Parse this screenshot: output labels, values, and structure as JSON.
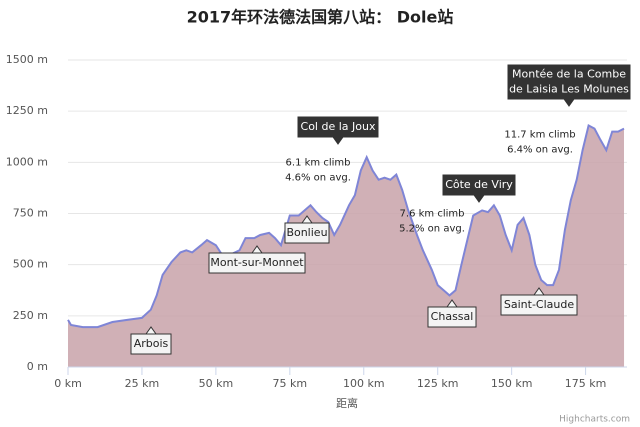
{
  "chart_data": {
    "type": "area",
    "title": "2017年环法德法国第八站： Dole站",
    "x_label": "距离",
    "credits": "Highcharts.com",
    "color": "#7f85d6",
    "fill": "#c8a2a9",
    "grid": true,
    "x": [
      0,
      1,
      5,
      10,
      15,
      20,
      25,
      28,
      30,
      32,
      35,
      38,
      40,
      42,
      45,
      47,
      50,
      52,
      55,
      58,
      60,
      63,
      65,
      68,
      70,
      72,
      75,
      78,
      80,
      82,
      84,
      86,
      88,
      90,
      92,
      95,
      97,
      99,
      101,
      103,
      105,
      107,
      109,
      111,
      113,
      115,
      118,
      120,
      123,
      125,
      127,
      129,
      131,
      133,
      135,
      137,
      140,
      142,
      144,
      146,
      148,
      150,
      152,
      154,
      156,
      158,
      160,
      162,
      164,
      166,
      168,
      170,
      172,
      174,
      176,
      178,
      180,
      182,
      184,
      186,
      188
    ],
    "values": [
      230,
      205,
      195,
      195,
      220,
      230,
      240,
      280,
      350,
      450,
      513,
      560,
      570,
      560,
      595,
      620,
      595,
      550,
      550,
      570,
      630,
      630,
      645,
      655,
      630,
      595,
      740,
      740,
      765,
      790,
      757,
      728,
      708,
      645,
      695,
      790,
      840,
      960,
      1025,
      960,
      915,
      925,
      915,
      940,
      865,
      767,
      645,
      570,
      475,
      400,
      375,
      350,
      375,
      500,
      620,
      740,
      765,
      757,
      790,
      740,
      645,
      570,
      695,
      728,
      645,
      500,
      425,
      400,
      400,
      475,
      670,
      815,
      915,
      1060,
      1180,
      1165,
      1110,
      1060,
      1150,
      1150,
      1165
    ],
    "xlim": [
      0,
      189
    ],
    "ylim": [
      0,
      1500
    ],
    "xticks": [
      {
        "value": 0,
        "label": "0 km"
      },
      {
        "value": 25,
        "label": "25 km"
      },
      {
        "value": 50,
        "label": "50 km"
      },
      {
        "value": 75,
        "label": "75 km"
      },
      {
        "value": 100,
        "label": "100 km"
      },
      {
        "value": 125,
        "label": "125 km"
      },
      {
        "value": 150,
        "label": "150 km"
      },
      {
        "value": 175,
        "label": "175 km"
      }
    ],
    "yticks": [
      {
        "value": 0,
        "label": "0 m"
      },
      {
        "value": 250,
        "label": "250 m"
      },
      {
        "value": 500,
        "label": "500 m"
      },
      {
        "value": 750,
        "label": "750 m"
      },
      {
        "value": 1000,
        "label": "1000 m"
      },
      {
        "value": 1250,
        "label": "1250 m"
      },
      {
        "value": 1500,
        "label": "1500 m"
      }
    ],
    "annotations": [
      {
        "lines": [
          "Arbois"
        ]
      },
      {
        "lines": [
          "Mont-sur-Monnet"
        ]
      },
      {
        "lines": [
          "Bonlieu"
        ]
      },
      {
        "lines": [
          "Col de la Joux"
        ]
      },
      {
        "lines": [
          "Chassal"
        ]
      },
      {
        "lines": [
          "Côte de Viry"
        ]
      },
      {
        "lines": [
          "Saint-Claude"
        ]
      },
      {
        "lines": [
          "Montée de la Combe",
          "de Laisia Les Molunes"
        ]
      },
      {
        "lines": [
          "6.1 km climb",
          "4.6% on avg."
        ]
      },
      {
        "lines": [
          "7.6 km climb",
          "5.2% on avg."
        ]
      },
      {
        "lines": [
          "11.7 km climb",
          "6.4% on avg."
        ]
      }
    ]
  }
}
